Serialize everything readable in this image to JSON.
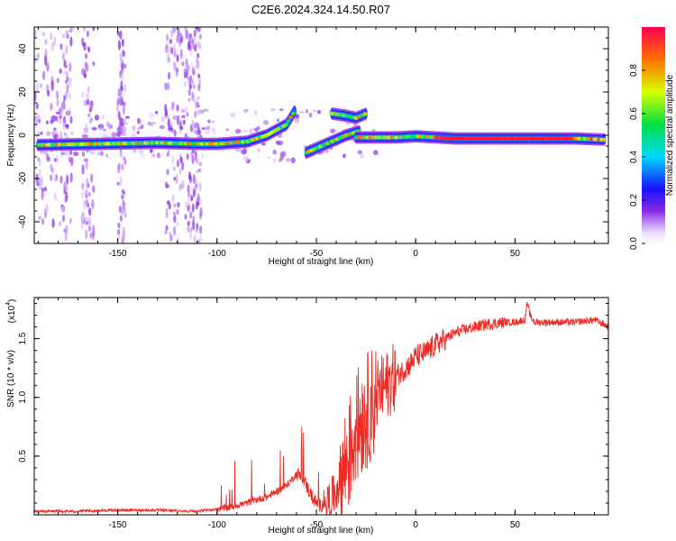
{
  "title": "C2E6.2024.324.14.50.R07",
  "colors": {
    "snr_line": "#ee2a24",
    "axes": "#000000"
  },
  "colorbar": {
    "label": "Normalized spectral amplitude",
    "ticks": [
      "0.0",
      "0.2",
      "0.4",
      "0.6",
      "0.8"
    ],
    "range": [
      0,
      1
    ],
    "colormap": "rainbow (light purple → blue → cyan → green → yellow → red)"
  },
  "chart_data": [
    {
      "type": "heatmap",
      "name": "spectrogram",
      "xlabel": "Height of straight line (km)",
      "ylabel": "Frequency (Hz)",
      "xlim": [
        -192,
        97
      ],
      "ylim": [
        -50,
        50
      ],
      "xticks": [
        -150,
        -100,
        -50,
        0,
        50
      ],
      "yticks": [
        -40,
        -20,
        0,
        20,
        40
      ],
      "grid": false,
      "ridges": [
        {
          "x": [
            -190,
            -160,
            -130,
            -110,
            -100,
            -85,
            -75,
            -65,
            -61
          ],
          "y": [
            -4.5,
            -4,
            -3.5,
            -4,
            -4,
            -3,
            0,
            5,
            11
          ]
        },
        {
          "x": [
            -55,
            -45,
            -35,
            -28
          ],
          "y": [
            -8,
            -4,
            0,
            2
          ]
        },
        {
          "x": [
            -42,
            -35,
            -30,
            -25
          ],
          "y": [
            10,
            9,
            8,
            10
          ]
        },
        {
          "x": [
            -30,
            -20,
            -10,
            0,
            20,
            40,
            60,
            80,
            95
          ],
          "y": [
            -1,
            -1,
            -1,
            -0.5,
            -1.5,
            -1.5,
            -1.5,
            -1.5,
            -2
          ]
        }
      ]
    },
    {
      "type": "line",
      "name": "snr",
      "xlabel": "Height of straight line (km)",
      "ylabel": "SNR (10 * v/v)",
      "multiplier": "(x10",
      "multiplier_exp": "4",
      "xlim": [
        -192,
        97
      ],
      "ylim": [
        0,
        1.85
      ],
      "xticks": [
        -150,
        -100,
        -50,
        0,
        50
      ],
      "yticks": [
        0.5,
        1.0,
        1.5
      ],
      "ytick_labels": [
        "0.5",
        "1.0",
        "1.5"
      ],
      "grid": false,
      "series": [
        {
          "x": [
            -192,
            -170,
            -150,
            -130,
            -110,
            -100,
            -95,
            -90,
            -85,
            -80,
            -75,
            -70,
            -65,
            -60,
            -57,
            -55,
            -52,
            -50,
            -48,
            -45,
            -42,
            -40,
            -38,
            -35,
            -32,
            -30,
            -28,
            -26,
            -24,
            -22,
            -20,
            -18,
            -15,
            -12,
            -10,
            -7,
            -5,
            -2,
            0,
            5,
            10,
            15,
            20,
            25,
            30,
            35,
            40,
            45,
            50,
            55,
            56,
            58,
            60,
            65,
            70,
            75,
            80,
            85,
            90,
            95,
            97
          ],
          "y": [
            0.03,
            0.03,
            0.04,
            0.04,
            0.03,
            0.05,
            0.06,
            0.08,
            0.1,
            0.13,
            0.15,
            0.2,
            0.25,
            0.35,
            0.32,
            0.25,
            0.15,
            0.1,
            0.08,
            0.1,
            0.15,
            0.2,
            0.3,
            0.45,
            0.6,
            0.75,
            0.8,
            0.85,
            0.9,
            0.95,
            1.0,
            1.05,
            1.1,
            1.15,
            1.18,
            1.22,
            1.25,
            1.3,
            1.35,
            1.38,
            1.45,
            1.5,
            1.55,
            1.58,
            1.6,
            1.62,
            1.63,
            1.64,
            1.64,
            1.66,
            1.8,
            1.68,
            1.64,
            1.64,
            1.64,
            1.64,
            1.64,
            1.65,
            1.66,
            1.62,
            1.6
          ]
        }
      ]
    }
  ]
}
